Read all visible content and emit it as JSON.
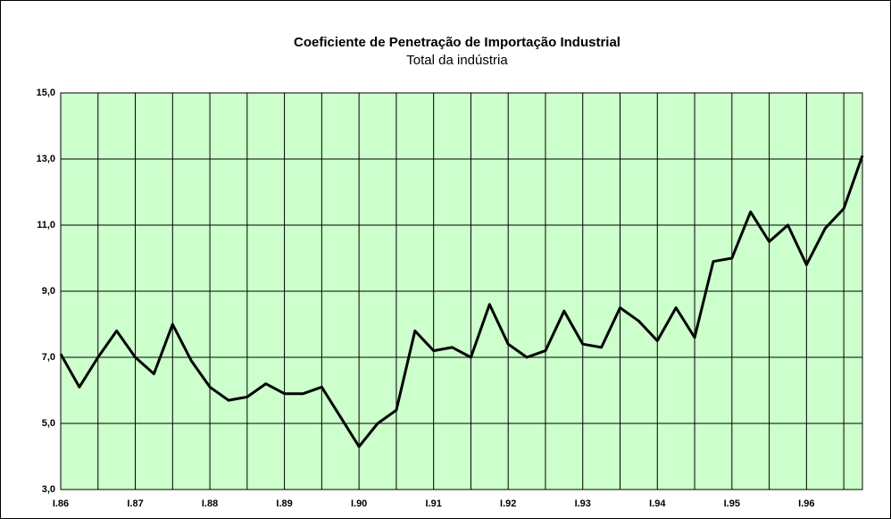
{
  "chart_data": {
    "type": "line",
    "title": "Coeficiente de Penetração de Importação Industrial",
    "subtitle": "Total da indústria",
    "categories": [
      "I.86",
      null,
      null,
      null,
      "I.87",
      null,
      null,
      null,
      "I.88",
      null,
      null,
      null,
      "I.89",
      null,
      null,
      null,
      "I.90",
      null,
      null,
      null,
      "I.91",
      null,
      null,
      null,
      "I.92",
      null,
      null,
      null,
      "I.93",
      null,
      null,
      null,
      "I.94",
      null,
      null,
      null,
      "I.95",
      null,
      null,
      null,
      "I.96",
      null,
      null,
      null
    ],
    "series": [
      {
        "color": "#000000",
        "values": [
          7.1,
          6.1,
          7.0,
          7.8,
          7.0,
          6.5,
          8.0,
          6.9,
          6.1,
          5.7,
          5.8,
          6.2,
          5.9,
          5.9,
          6.1,
          5.2,
          4.3,
          5.0,
          5.4,
          7.8,
          7.2,
          7.3,
          7.0,
          8.6,
          7.4,
          7.0,
          7.2,
          8.4,
          7.4,
          7.3,
          8.5,
          8.1,
          7.5,
          8.5,
          7.6,
          9.9,
          10.0,
          11.4,
          10.5,
          11.0,
          9.8,
          10.9,
          11.5,
          13.1
        ]
      }
    ],
    "ylim": [
      3,
      15
    ],
    "yticks": [
      {
        "value": 3,
        "label": "3,0"
      },
      {
        "value": 5,
        "label": "5,0"
      },
      {
        "value": 7,
        "label": "7,0"
      },
      {
        "value": 9,
        "label": "9,0"
      },
      {
        "value": 11,
        "label": "11,0"
      },
      {
        "value": 13,
        "label": "13,0"
      },
      {
        "value": 15,
        "label": "15,0"
      }
    ],
    "grid": true,
    "plot_background": "#ccffcc"
  }
}
